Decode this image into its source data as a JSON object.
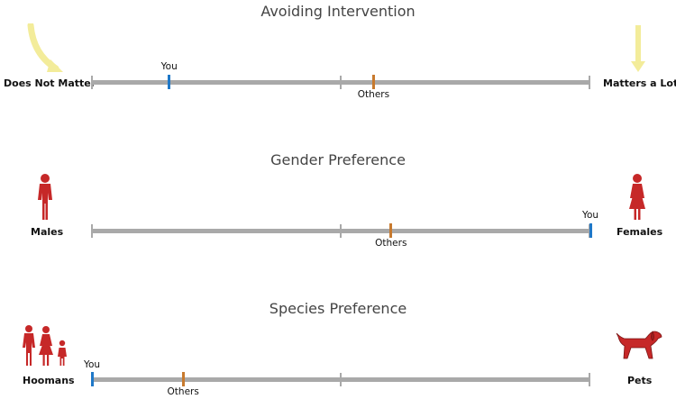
{
  "colors": {
    "you": "#1f78c8",
    "others": "#c87a2e",
    "track": "#a9a9a9",
    "figure": "#c62828",
    "arrow": "#f3ec9a"
  },
  "sections": [
    {
      "title": "Avoiding Intervention",
      "left_label": "Does Not Matter",
      "right_label": "Matters a Lot",
      "you_label": "You",
      "others_label": "Others",
      "you_value": 0.155,
      "others_value": 0.565,
      "left_icon": "curved-arrow-icon",
      "right_icon": "down-arrow-icon"
    },
    {
      "title": "Gender Preference",
      "left_label": "Males",
      "right_label": "Females",
      "you_label": "You",
      "others_label": "Others",
      "you_value": 1.0,
      "others_value": 0.6,
      "left_icon": "male-figure-icon",
      "right_icon": "female-figure-icon"
    },
    {
      "title": "Species Preference",
      "left_label": "Hoomans",
      "right_label": "Pets",
      "you_label": "You",
      "others_label": "Others",
      "you_value": 0.0,
      "others_value": 0.183,
      "left_icon": "family-figures-icon",
      "right_icon": "dog-icon"
    }
  ]
}
